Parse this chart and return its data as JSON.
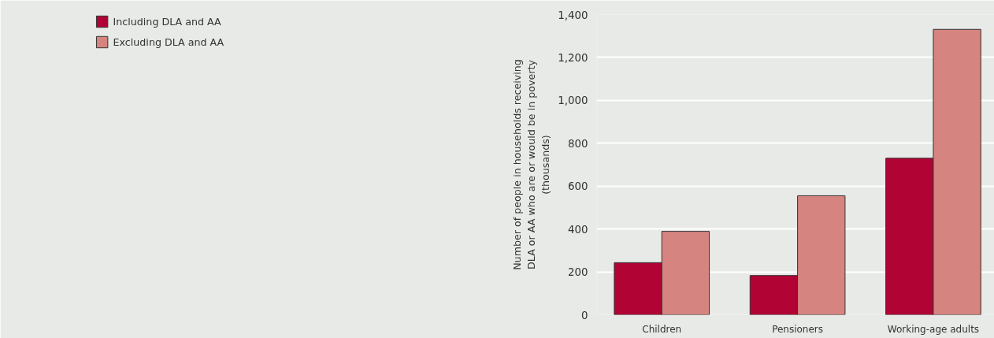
{
  "chart_data": {
    "type": "bar",
    "ylabel": "Number of people in households receiving\nDLA or AA who are or would be in poverty\n(thousands)",
    "categories": [
      "Children",
      "Pensioners",
      "Working-age adults"
    ],
    "series": [
      {
        "name": "Including DLA and AA",
        "color": "#b10435",
        "values": [
          243,
          183,
          730
        ]
      },
      {
        "name": "Excluding DLA and AA",
        "color": "#d58480",
        "values": [
          389,
          555,
          1331
        ]
      }
    ],
    "ylim": [
      0,
      1400
    ],
    "yticks": [
      0,
      {
        "value": 200,
        "label": "200"
      },
      {
        "value": 400,
        "label": "400"
      },
      {
        "value": 600,
        "label": "600"
      },
      {
        "value": 800,
        "label": "800"
      },
      {
        "value": 1000,
        "label": "1,000"
      },
      {
        "value": 1200,
        "label": "1,200"
      },
      {
        "value": 1400,
        "label": "1,400"
      }
    ],
    "grid": "y",
    "legend": "top left"
  }
}
